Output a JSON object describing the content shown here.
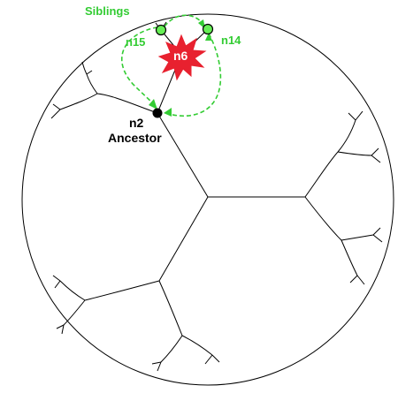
{
  "diagram": {
    "labels": {
      "siblings": "Siblings",
      "n15": "n15",
      "n14": "n14",
      "n6": "n6",
      "n2": "n2",
      "ancestor": "Ancestor"
    },
    "colors": {
      "tree": "#000000",
      "highlight_green": "#33cc33",
      "node_green_fill": "#66ee55",
      "star_red": "#e8212f",
      "star_text": "#ffffff",
      "ancestor_node": "#000000"
    },
    "icons": {
      "current_node": "red-burst-icon",
      "sibling_node": "green-circle-icon",
      "ancestor_node": "black-dot-icon"
    }
  }
}
